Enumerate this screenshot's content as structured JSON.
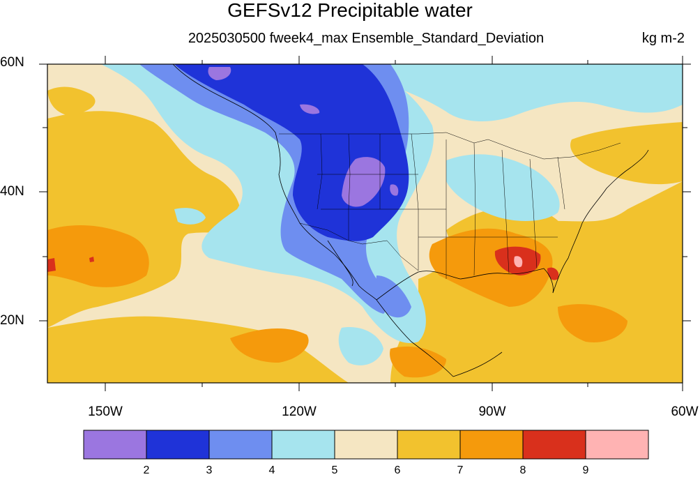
{
  "title": "GEFSv12 Precipitable water",
  "subtitle": "2025030500 fweek4_max Ensemble_Standard_Deviation",
  "units": "kg m-2",
  "map": {
    "lat_labels": [
      "60N",
      "40N",
      "20N"
    ],
    "lon_labels": [
      "150W",
      "120W",
      "90W",
      "60W"
    ],
    "region": "North America and eastern Pacific",
    "extent": {
      "lon_min": -159,
      "lon_max": -60,
      "lat_min": 10,
      "lat_max": 60
    }
  },
  "legend": {
    "labels": [
      "2",
      "3",
      "4",
      "5",
      "6",
      "7",
      "8",
      "9"
    ],
    "colors": [
      "#9b76e0",
      "#1f33d8",
      "#6e8ef0",
      "#a6e4ee",
      "#f5e6c2",
      "#f2c22e",
      "#f59a0c",
      "#d9301c",
      "#ffb3b3"
    ]
  }
}
